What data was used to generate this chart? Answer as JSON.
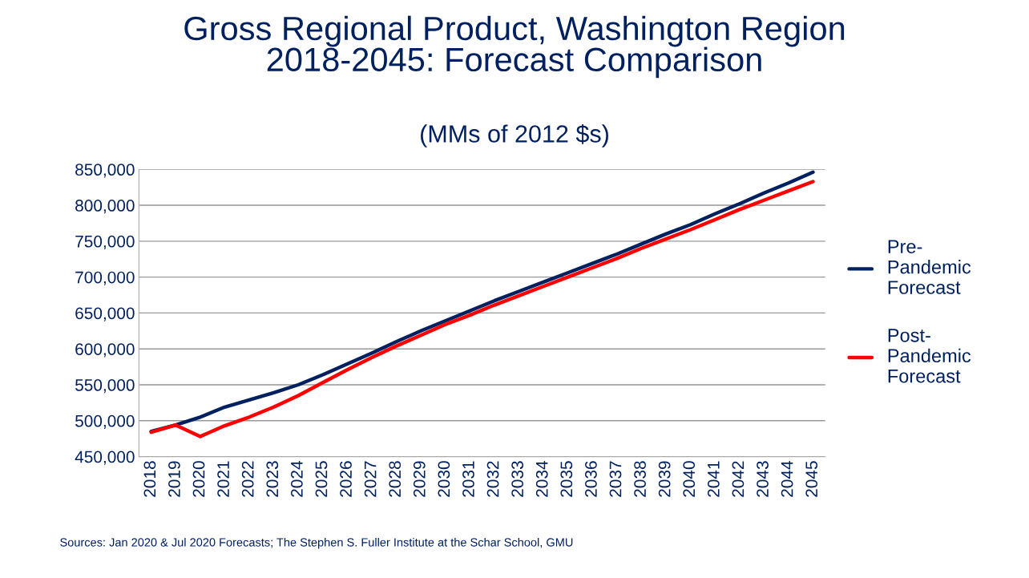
{
  "chart_data": {
    "type": "line",
    "title": "Gross Regional Product, Washington Region\n2018-2045: Forecast Comparison",
    "subtitle": "(MMs of 2012 $s)",
    "categories": [
      "2018",
      "2019",
      "2020",
      "2021",
      "2022",
      "2023",
      "2024",
      "2025",
      "2026",
      "2027",
      "2028",
      "2029",
      "2030",
      "2031",
      "2032",
      "2033",
      "2034",
      "2035",
      "2036",
      "2037",
      "2038",
      "2039",
      "2040",
      "2041",
      "2042",
      "2043",
      "2044",
      "2045"
    ],
    "series": [
      {
        "name": "Pre-Pandemic Forecast",
        "color": "#002060",
        "values": [
          485000,
          494000,
          505000,
          519000,
          529000,
          539000,
          550000,
          564000,
          579000,
          594000,
          610000,
          625000,
          639000,
          653000,
          667000,
          680000,
          693000,
          706000,
          719000,
          732000,
          746000,
          760000,
          773000,
          788000,
          802000,
          817000,
          831000,
          846000
        ]
      },
      {
        "name": "Post-Pandemic Forecast",
        "color": "#ff0000",
        "values": [
          484000,
          494000,
          478000,
          493000,
          505000,
          519000,
          535000,
          553000,
          571000,
          588000,
          604000,
          619000,
          634000,
          647000,
          661000,
          674000,
          687000,
          700000,
          713000,
          726000,
          740000,
          753000,
          766000,
          780000,
          794000,
          807000,
          820000,
          833000
        ]
      }
    ],
    "ylim": [
      450000,
      850000
    ],
    "yticks": [
      {
        "value": 450000,
        "label": "450,000"
      },
      {
        "value": 500000,
        "label": "500,000"
      },
      {
        "value": 550000,
        "label": "550,000"
      },
      {
        "value": 600000,
        "label": "600,000"
      },
      {
        "value": 650000,
        "label": "650,000"
      },
      {
        "value": 700000,
        "label": "700,000"
      },
      {
        "value": 750000,
        "label": "750,000"
      },
      {
        "value": 800000,
        "label": "800,000"
      },
      {
        "value": 850000,
        "label": "850,000"
      }
    ],
    "grid": "y",
    "legend": "right",
    "marker": "none",
    "line_style": "solid",
    "annotations": [
      "Sources: Jan 2020 & Jul 2020 Forecasts; The Stephen S. Fuller Institute at the Schar School, GMU"
    ]
  }
}
